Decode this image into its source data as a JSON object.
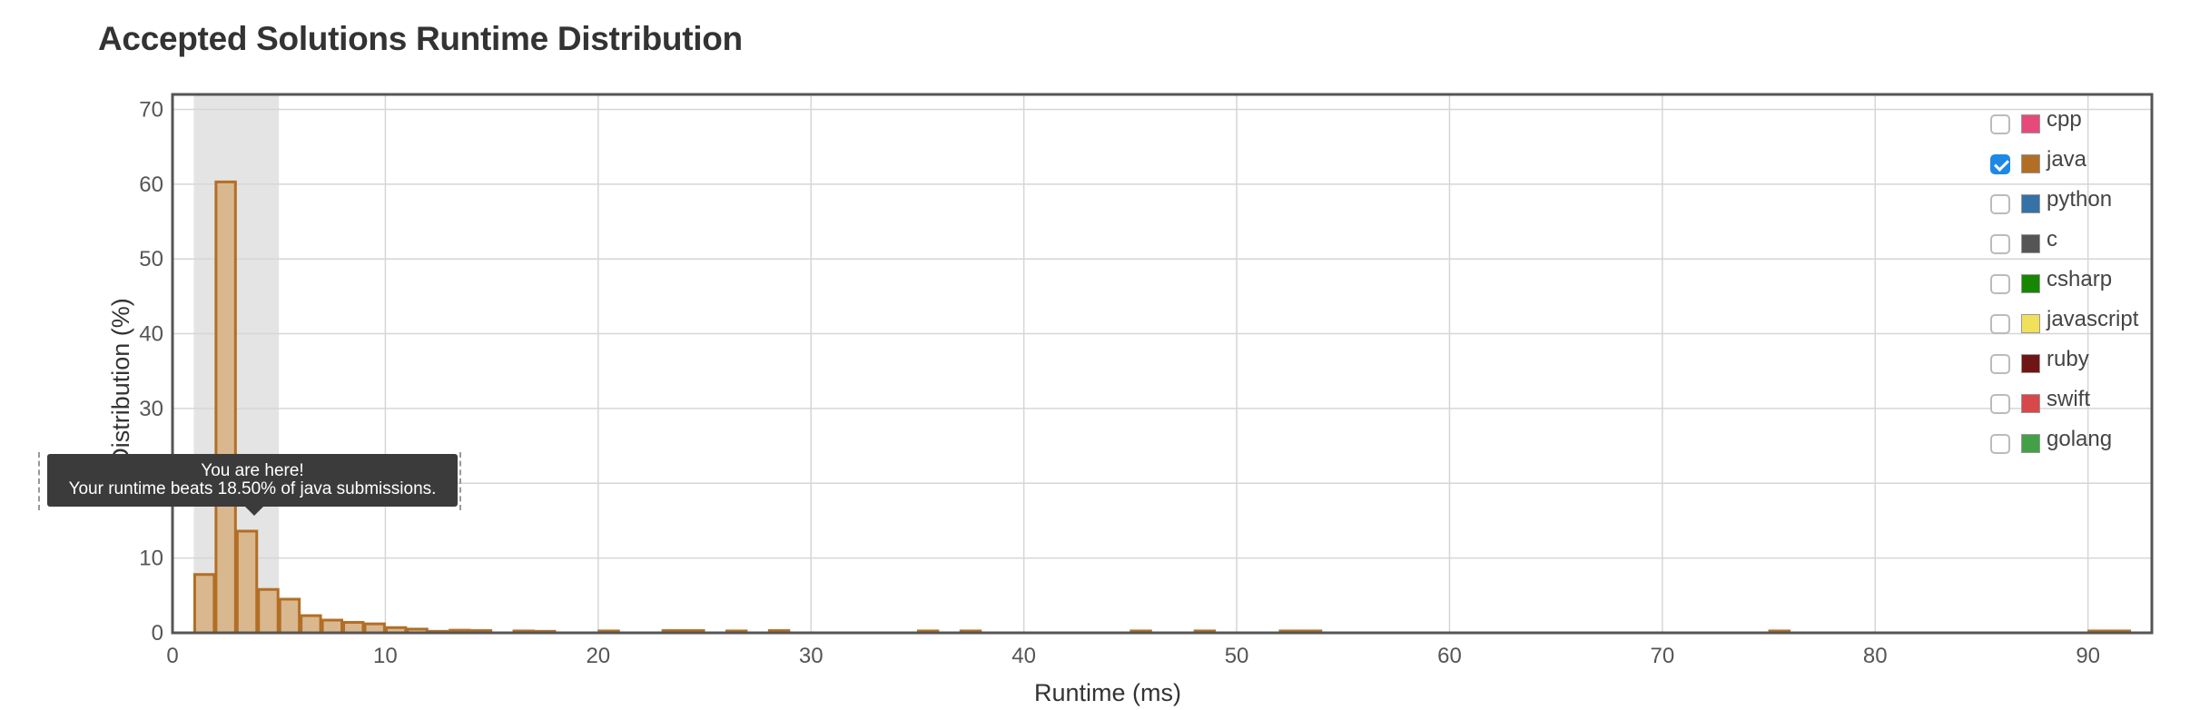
{
  "page_title": "Accepted Solutions Runtime Distribution",
  "chart_data": {
    "type": "bar",
    "title": "Accepted Solutions Runtime Distribution",
    "xlabel": "Runtime (ms)",
    "ylabel": "Distribution (%)",
    "xlim": [
      0,
      93
    ],
    "ylim": [
      0,
      72
    ],
    "xticks": [
      0,
      10,
      20,
      30,
      40,
      50,
      60,
      70,
      80,
      90
    ],
    "yticks": [
      0,
      10,
      20,
      30,
      40,
      50,
      60,
      70
    ],
    "grid": true,
    "legend_position": "top-right",
    "highlight_range": [
      1,
      5
    ],
    "bin_width": 1,
    "series": [
      {
        "name": "java",
        "color": "#b26e25",
        "fill": "#d9b88f",
        "x": [
          1,
          2,
          3,
          4,
          5,
          6,
          7,
          8,
          9,
          10,
          11,
          12,
          13,
          14,
          16,
          17,
          20,
          23,
          24,
          26,
          28,
          35,
          37,
          45,
          48,
          52,
          53,
          75,
          90,
          91
        ],
        "values": [
          7.8,
          60.3,
          13.6,
          5.8,
          4.5,
          2.3,
          1.7,
          1.4,
          1.2,
          0.7,
          0.5,
          0.2,
          0.35,
          0.3,
          0.25,
          0.2,
          0.25,
          0.3,
          0.3,
          0.25,
          0.3,
          0.25,
          0.25,
          0.25,
          0.25,
          0.25,
          0.25,
          0.25,
          0.25,
          0.25
        ]
      }
    ]
  },
  "legend": [
    {
      "label": "cpp",
      "color": "#e64a7a",
      "checked": false
    },
    {
      "label": "java",
      "color": "#b26e25",
      "checked": true
    },
    {
      "label": "python",
      "color": "#3572a5",
      "checked": false
    },
    {
      "label": "c",
      "color": "#555555",
      "checked": false
    },
    {
      "label": "csharp",
      "color": "#178600",
      "checked": false
    },
    {
      "label": "javascript",
      "color": "#f1e05a",
      "checked": false
    },
    {
      "label": "ruby",
      "color": "#701516",
      "checked": false
    },
    {
      "label": "swift",
      "color": "#d6484a",
      "checked": false
    },
    {
      "label": "golang",
      "color": "#43a047",
      "checked": false
    }
  ],
  "tooltip": {
    "line1": "You are here!",
    "line2": "Your runtime beats 18.50% of java submissions."
  }
}
